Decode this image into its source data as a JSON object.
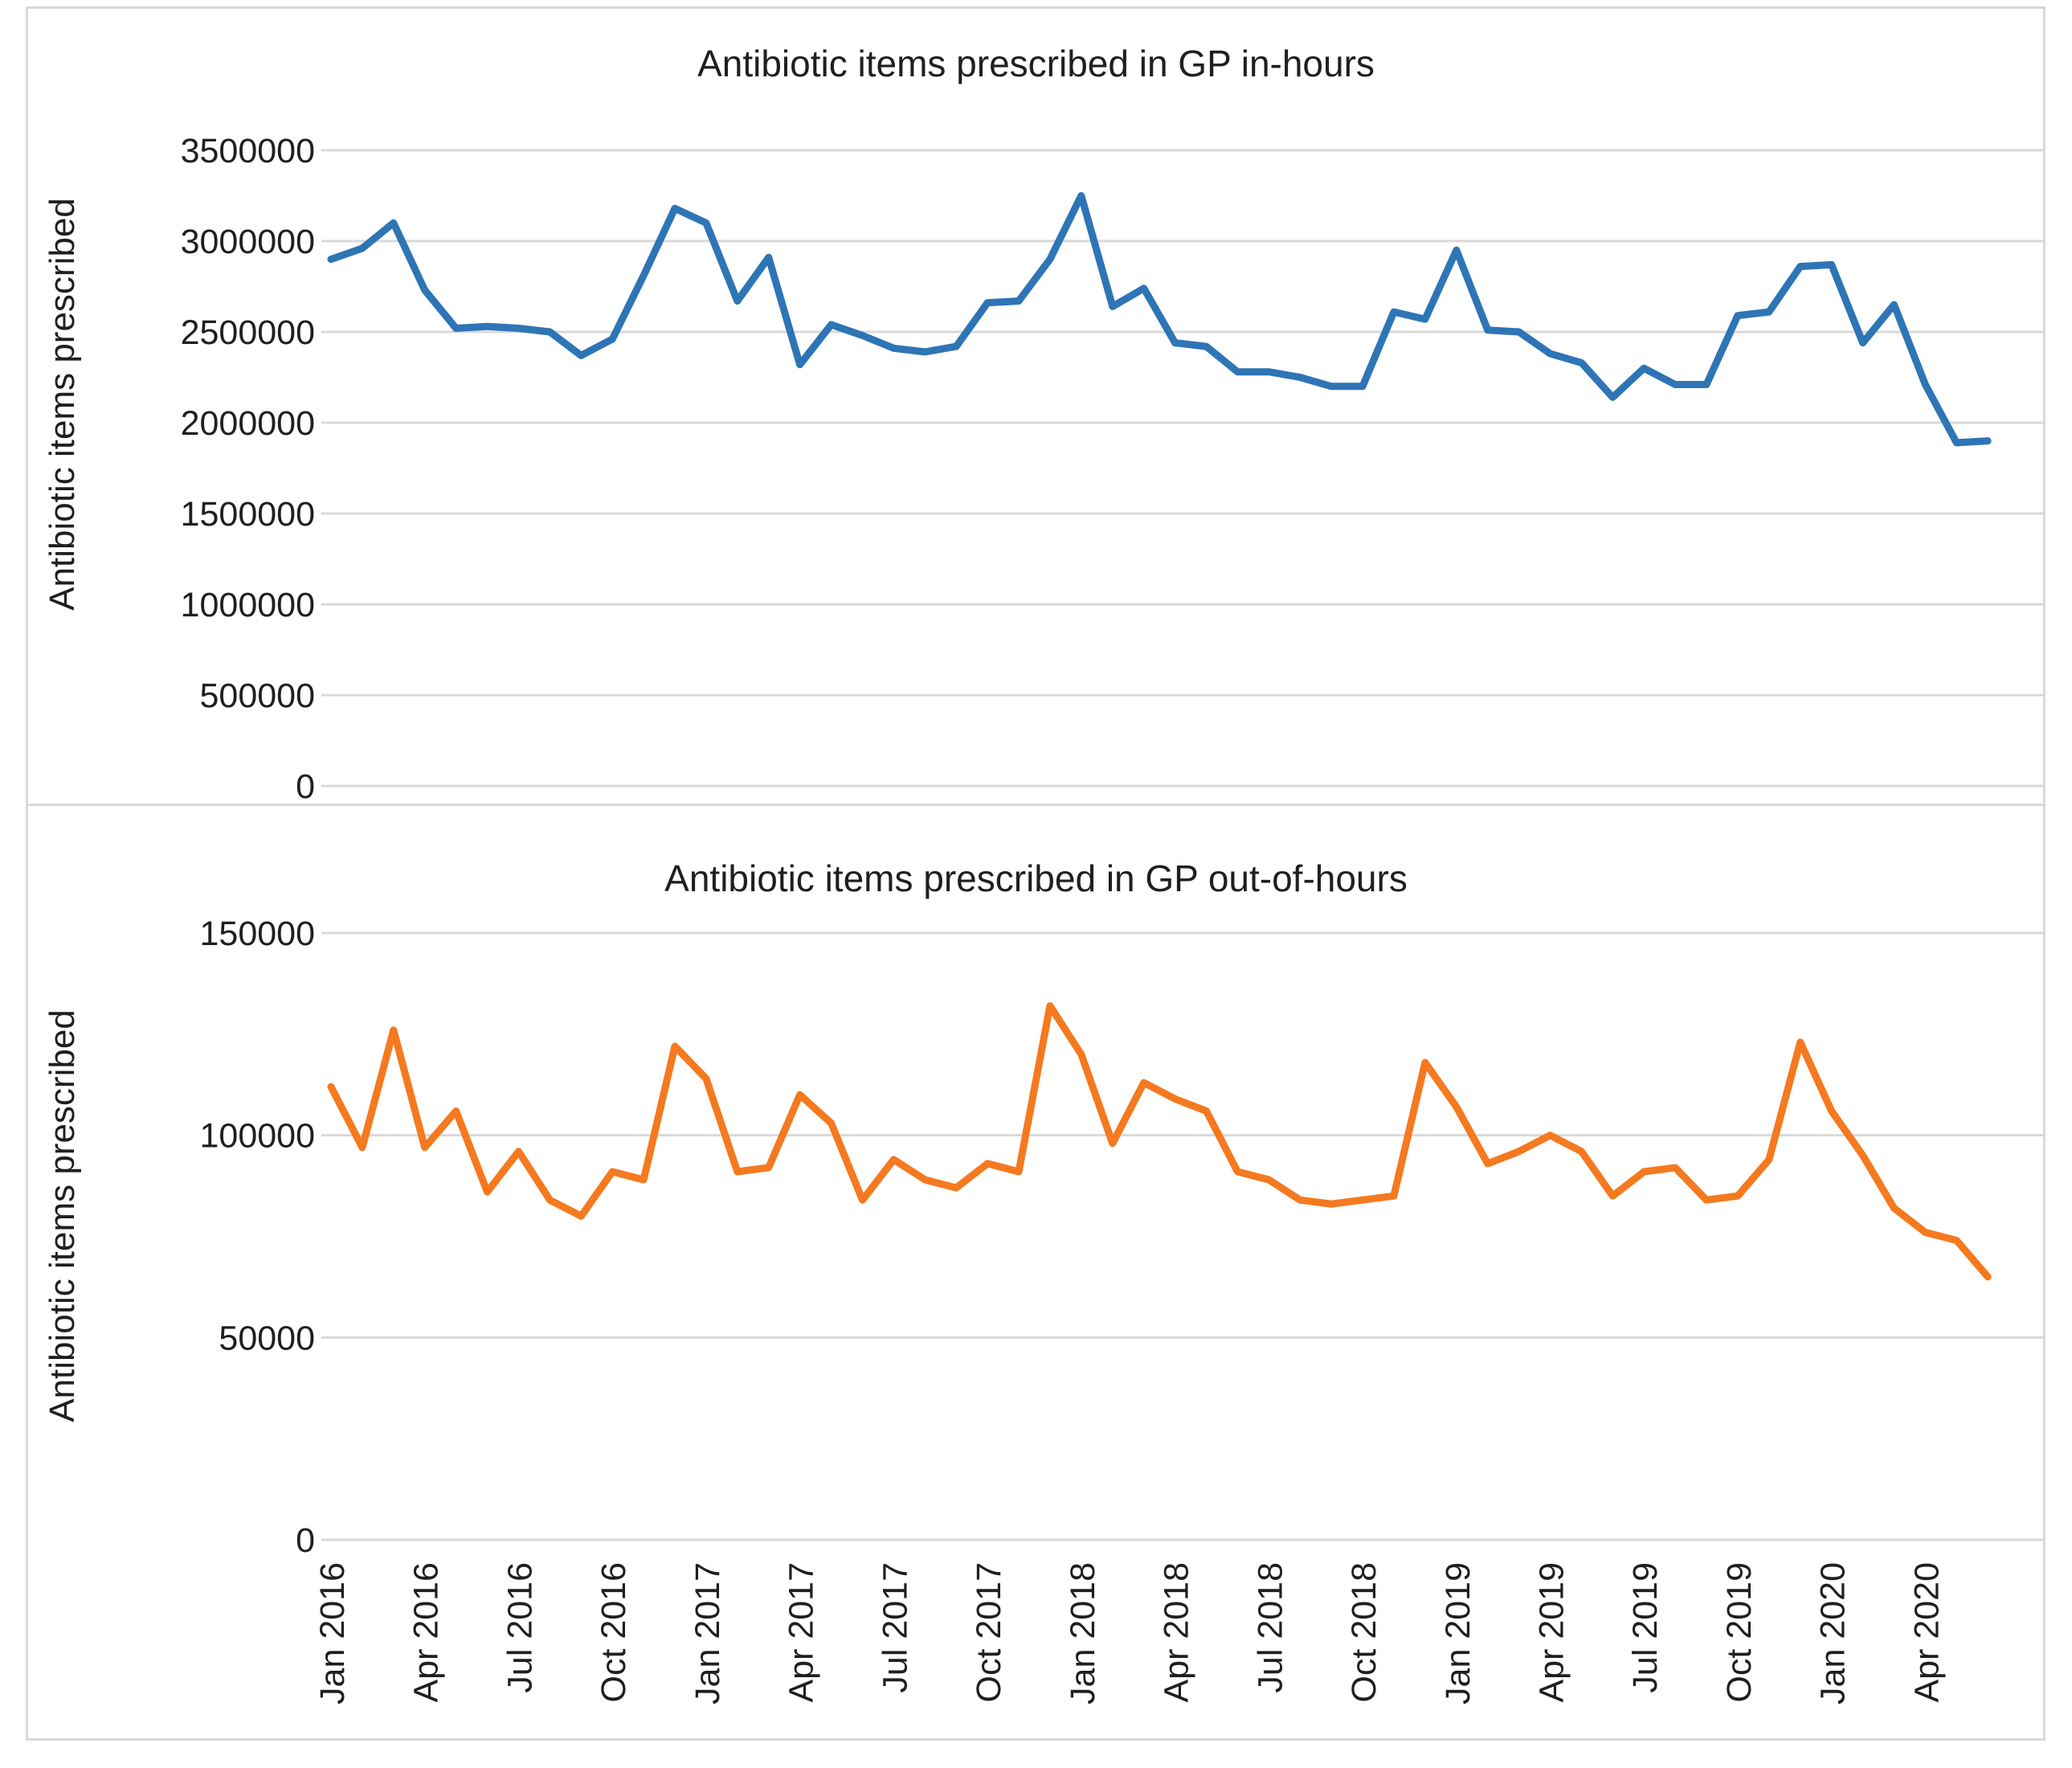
{
  "figure": {
    "background": "#FFFFFF",
    "border_color": "#D9D9D9",
    "gridline_color": "#D9D9D9"
  },
  "chart_data": [
    {
      "type": "line",
      "title": "Antibiotic items prescribed in GP in-hours",
      "ylabel": "Antibiotic items prescribed",
      "xlabel": "",
      "series_name": "Antibiotic items prescribed in GP in-hours",
      "line_color": "#2E75B6",
      "grid": true,
      "legend": "none",
      "ylim": [
        0,
        3500000
      ],
      "y_tick_values": [
        3500000,
        3000000,
        2500000,
        2000000,
        1500000,
        1000000,
        500000,
        0
      ],
      "y_tick_labels": [
        "3500000",
        "3000000",
        "2500000",
        "2000000",
        "1500000",
        "1000000",
        "500000",
        "0"
      ],
      "values": [
        2900000,
        2960000,
        3100000,
        2730000,
        2520000,
        2530000,
        2520000,
        2500000,
        2370000,
        2460000,
        2810000,
        3180000,
        3100000,
        2670000,
        2910000,
        2320000,
        2540000,
        2480000,
        2410000,
        2390000,
        2420000,
        2660000,
        2670000,
        2900000,
        3250000,
        2640000,
        2740000,
        2440000,
        2420000,
        2280000,
        2280000,
        2250000,
        2200000,
        2200000,
        2610000,
        2570000,
        2950000,
        2510000,
        2500000,
        2380000,
        2330000,
        2140000,
        2300000,
        2210000,
        2210000,
        2590000,
        2610000,
        2860000,
        2870000,
        2440000,
        2650000,
        2210000,
        1890000,
        1900000
      ]
    },
    {
      "type": "line",
      "title": "Antibiotic items prescribed in GP out-of-hours",
      "ylabel": "Antibiotic items prescribed",
      "xlabel": "",
      "series_name": "Antibiotic items prescribed in GP out-of-hours",
      "line_color": "#F5791F",
      "grid": true,
      "legend": "none",
      "ylim": [
        0,
        150000
      ],
      "y_tick_values": [
        150000,
        100000,
        50000,
        0
      ],
      "y_tick_labels": [
        "150000",
        "100000",
        "50000",
        "0"
      ],
      "values": [
        112000,
        97000,
        126000,
        97000,
        106000,
        86000,
        96000,
        84000,
        80000,
        91000,
        89000,
        122000,
        114000,
        91000,
        92000,
        110000,
        103000,
        84000,
        94000,
        89000,
        87000,
        93000,
        91000,
        132000,
        120000,
        98000,
        113000,
        109000,
        106000,
        91000,
        89000,
        84000,
        83000,
        84000,
        85000,
        118000,
        107000,
        93000,
        96000,
        100000,
        96000,
        85000,
        91000,
        92000,
        84000,
        85000,
        94000,
        123000,
        106000,
        95000,
        82000,
        76000,
        74000,
        65000
      ]
    }
  ],
  "x_axis": {
    "frequency": "monthly",
    "tick_every_n_months": 3,
    "months": [
      "Jan 2016",
      "Feb 2016",
      "Mar 2016",
      "Apr 2016",
      "May 2016",
      "Jun 2016",
      "Jul 2016",
      "Aug 2016",
      "Sep 2016",
      "Oct 2016",
      "Nov 2016",
      "Dec 2016",
      "Jan 2017",
      "Feb 2017",
      "Mar 2017",
      "Apr 2017",
      "May 2017",
      "Jun 2017",
      "Jul 2017",
      "Aug 2017",
      "Sep 2017",
      "Oct 2017",
      "Nov 2017",
      "Dec 2017",
      "Jan 2018",
      "Feb 2018",
      "Mar 2018",
      "Apr 2018",
      "May 2018",
      "Jun 2018",
      "Jul 2018",
      "Aug 2018",
      "Sep 2018",
      "Oct 2018",
      "Nov 2018",
      "Dec 2018",
      "Jan 2019",
      "Feb 2019",
      "Mar 2019",
      "Apr 2019",
      "May 2019",
      "Jun 2019",
      "Jul 2019",
      "Aug 2019",
      "Sep 2019",
      "Oct 2019",
      "Nov 2019",
      "Dec 2019",
      "Jan 2020",
      "Feb 2020",
      "Mar 2020",
      "Apr 2020",
      "May 2020",
      "Jun 2020"
    ],
    "shown_tick_labels": [
      "Jan 2016",
      "Apr 2016",
      "Jul 2016",
      "Oct 2016",
      "Jan 2017",
      "Apr 2017",
      "Jul 2017",
      "Oct 2017",
      "Jan 2018",
      "Apr 2018",
      "Jul 2018",
      "Oct 2018",
      "Jan 2019",
      "Apr 2019",
      "Jul 2019",
      "Oct 2019",
      "Jan 2020",
      "Apr 2020"
    ]
  }
}
